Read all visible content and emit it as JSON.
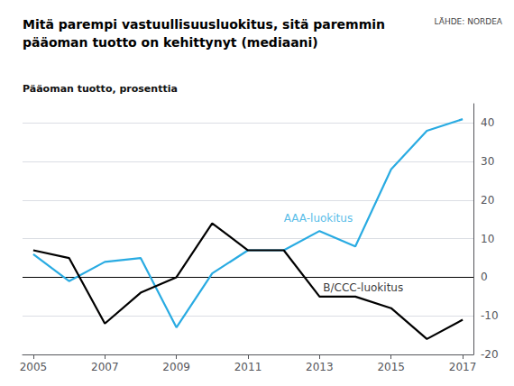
{
  "chart_data": {
    "type": "line",
    "title": "Mitä parempi vastuullisuusluokitus, sitä paremmin\npääoman tuotto on kehittynyt (mediaani)",
    "ylabel": "Pääoman tuotto, prosenttia",
    "source": "LÄHDE: NORDEA",
    "x": [
      2005,
      2006,
      2007,
      2008,
      2009,
      2010,
      2011,
      2012,
      2013,
      2014,
      2015,
      2016,
      2017
    ],
    "series": [
      {
        "name": "AAA-luokitus",
        "color": "#29abe2",
        "values": [
          6,
          -1,
          4,
          5,
          -13,
          1,
          7,
          7,
          12,
          8,
          28,
          38,
          41
        ]
      },
      {
        "name": "B/CCC-luokitus",
        "color": "#000000",
        "values": [
          7,
          5,
          -12,
          -4,
          0,
          14,
          7,
          7,
          -5,
          -5,
          -8,
          -16,
          -11
        ]
      }
    ],
    "annotations": [
      {
        "text": "AAA-luokitus",
        "x": 2012.0,
        "y": 14,
        "color": "#29abe2"
      },
      {
        "text": "B/CCC-luokitus",
        "x": 2013.1,
        "y": -4,
        "color": "#000000"
      }
    ],
    "xlim": [
      2004.7,
      2017.3
    ],
    "xticks": [
      2005,
      2007,
      2009,
      2011,
      2013,
      2015,
      2017
    ],
    "ylim": [
      -20,
      45
    ],
    "yticks": [
      -20,
      -10,
      0,
      10,
      20,
      30,
      40
    ],
    "grid": true
  }
}
